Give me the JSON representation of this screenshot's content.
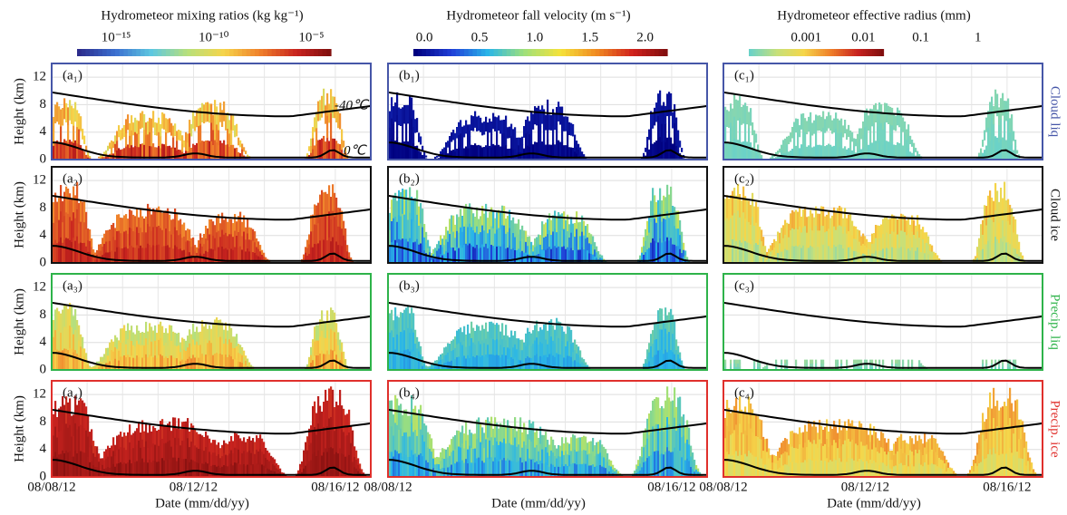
{
  "chart_data": [
    {
      "type": "curtain",
      "title": "Hydrometeor mixing ratios (kg kg⁻¹)",
      "colorbar": {
        "log": true,
        "lim": [
          1e-17,
          0.0001
        ],
        "ticks": [
          {
            "value": 1e-15,
            "label": "10⁻¹⁵"
          },
          {
            "value": 1e-10,
            "label": "10⁻¹⁰"
          },
          {
            "value": 1e-05,
            "label": "10⁻⁵"
          }
        ],
        "colors": [
          "#2c2c8c",
          "#3b6fd0",
          "#5ec8e0",
          "#b8e07a",
          "#f6d44a",
          "#ef7f2a",
          "#c8231f",
          "#7a0d0d"
        ]
      },
      "ylabel": "Height (km)",
      "ylim": [
        0,
        14
      ],
      "yticks": [
        0,
        4,
        8,
        12
      ],
      "xlabel": "Date (mm/dd/yy)",
      "xticks": [
        "08/08/12",
        "08/12/12",
        "08/16/12"
      ],
      "annotations": [
        "-40℃",
        "0℃"
      ],
      "panels": [
        {
          "label": "(a₁)"
        },
        {
          "label": "(a₂)"
        },
        {
          "label": "(a₃)"
        },
        {
          "label": "(a₄)"
        }
      ]
    },
    {
      "type": "curtain",
      "title": "Hydrometeor fall velocity  (m s⁻¹)",
      "colorbar": {
        "log": false,
        "lim": [
          -0.1,
          2.2
        ],
        "ticks": [
          {
            "value": 0,
            "label": "0.0"
          },
          {
            "value": 0.5,
            "label": "0.5"
          },
          {
            "value": 1,
            "label": "1.0"
          },
          {
            "value": 1.5,
            "label": "1.5"
          },
          {
            "value": 2,
            "label": "2.0"
          }
        ],
        "colors": [
          "#00007f",
          "#1f3fd8",
          "#29b6e8",
          "#9fe07a",
          "#f5e23a",
          "#f08a22",
          "#d0201c",
          "#7a0d0d"
        ]
      },
      "xlabel": "Date (mm/dd/yy)",
      "xticks": [
        "08/08/12",
        "08/16/12"
      ],
      "panels": [
        {
          "label": "(b₁)"
        },
        {
          "label": "(b₂)"
        },
        {
          "label": "(b₃)"
        },
        {
          "label": "(b₄)"
        }
      ]
    },
    {
      "type": "curtain",
      "title": "Hydrometeor effective radius (mm)",
      "colorbar": {
        "log": true,
        "lim": [
          0.0001,
          10
        ],
        "ticks": [
          0.001,
          0.01,
          0.1,
          1
        ],
        "colors": [
          "#6ad2c8",
          "#c6e07a",
          "#f5d64a",
          "#ef7f2a",
          "#c8231f",
          "#7a0d0d"
        ]
      },
      "xlabel": "Date (mm/dd/yy)",
      "xticks": [
        "08/08/12",
        "08/12/12",
        "08/16/12"
      ],
      "panels": [
        {
          "label": "(c₁)",
          "row_label": "Cloud liq",
          "color": "#4656a8"
        },
        {
          "label": "(c₂)",
          "row_label": "Cloud ice",
          "color": "#111111"
        },
        {
          "label": "(c₃)",
          "row_label": "Precip. liq",
          "color": "#2eb34a"
        },
        {
          "label": "(c₄)",
          "row_label": "Precip. ice",
          "color": "#e0302c"
        }
      ]
    }
  ]
}
